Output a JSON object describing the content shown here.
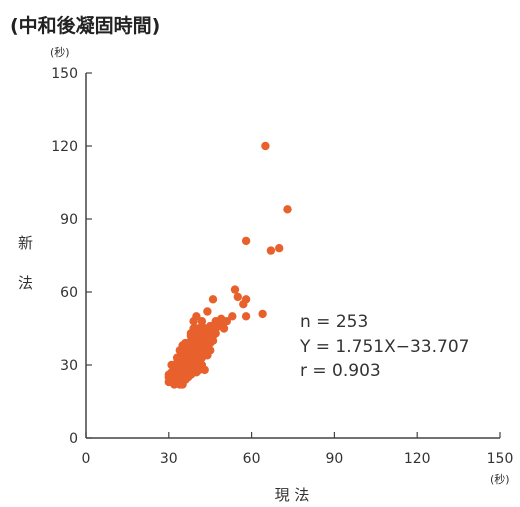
{
  "chart_data": {
    "type": "scatter",
    "title": "(中和後凝固時間)",
    "xlabel": "現 法",
    "ylabel_chars": [
      "新",
      "法"
    ],
    "x_unit": "(秒)",
    "y_unit": "(秒)",
    "xlim": [
      0,
      150
    ],
    "ylim": [
      0,
      150
    ],
    "x_ticks": [
      "0",
      "30",
      "60",
      "90",
      "120",
      "150"
    ],
    "y_ticks": [
      "0",
      "30",
      "60",
      "90",
      "120",
      "150"
    ],
    "marker_color": "#e8612c",
    "stats": {
      "n": "n = 253",
      "regression": "Y = 1.751X−33.707",
      "r": "r = 0.903"
    },
    "points": [
      [
        65,
        120
      ],
      [
        73,
        94
      ],
      [
        58,
        81
      ],
      [
        70,
        78
      ],
      [
        67,
        77
      ],
      [
        54,
        61
      ],
      [
        55,
        58
      ],
      [
        58,
        57
      ],
      [
        46,
        57
      ],
      [
        57,
        55
      ],
      [
        64,
        51
      ],
      [
        58,
        50
      ],
      [
        40,
        50
      ],
      [
        42,
        48
      ],
      [
        44,
        52
      ],
      [
        47,
        48
      ],
      [
        49,
        47
      ],
      [
        50,
        45
      ],
      [
        45,
        46
      ],
      [
        43,
        45
      ],
      [
        41,
        44
      ],
      [
        39,
        45
      ],
      [
        46,
        42
      ],
      [
        44,
        41
      ],
      [
        42,
        42
      ],
      [
        40,
        40
      ],
      [
        38,
        42
      ],
      [
        43,
        38
      ],
      [
        41,
        38
      ],
      [
        39,
        37
      ],
      [
        37,
        38
      ],
      [
        36,
        36
      ],
      [
        38,
        35
      ],
      [
        40,
        35
      ],
      [
        42,
        36
      ],
      [
        44,
        34
      ],
      [
        35,
        34
      ],
      [
        34,
        33
      ],
      [
        36,
        32
      ],
      [
        38,
        32
      ],
      [
        40,
        31
      ],
      [
        42,
        30
      ],
      [
        33,
        31
      ],
      [
        35,
        30
      ],
      [
        37,
        30
      ],
      [
        39,
        29
      ],
      [
        41,
        28
      ],
      [
        32,
        29
      ],
      [
        34,
        28
      ],
      [
        36,
        28
      ],
      [
        38,
        27
      ],
      [
        40,
        27
      ],
      [
        31,
        27
      ],
      [
        33,
        26
      ],
      [
        35,
        26
      ],
      [
        37,
        25
      ],
      [
        30,
        25
      ],
      [
        32,
        24
      ],
      [
        34,
        24
      ],
      [
        36,
        24
      ],
      [
        31,
        23
      ],
      [
        33,
        23
      ],
      [
        35,
        22
      ],
      [
        32,
        22
      ],
      [
        30,
        23
      ],
      [
        38,
        30
      ],
      [
        36,
        27
      ],
      [
        34,
        30
      ],
      [
        39,
        33
      ],
      [
        41,
        34
      ],
      [
        37,
        33
      ],
      [
        43,
        40
      ],
      [
        45,
        39
      ],
      [
        47,
        43
      ],
      [
        48,
        46
      ],
      [
        44,
        44
      ],
      [
        42,
        29
      ],
      [
        43,
        28
      ],
      [
        35,
        35
      ],
      [
        33,
        33
      ],
      [
        31,
        30
      ],
      [
        37,
        36
      ],
      [
        39,
        40
      ],
      [
        41,
        41
      ],
      [
        36,
        39
      ],
      [
        34,
        36
      ],
      [
        38,
        39
      ],
      [
        40,
        43
      ],
      [
        42,
        46
      ],
      [
        39,
        48
      ],
      [
        36,
        29
      ],
      [
        34,
        26
      ],
      [
        33,
        28
      ],
      [
        35,
        27
      ],
      [
        37,
        28
      ],
      [
        39,
        31
      ],
      [
        41,
        32
      ],
      [
        38,
        26
      ],
      [
        40,
        29
      ],
      [
        32,
        26
      ],
      [
        30,
        26
      ],
      [
        31,
        25
      ],
      [
        36,
        31
      ],
      [
        34,
        32
      ],
      [
        38,
        37
      ],
      [
        35,
        38
      ],
      [
        40,
        38
      ],
      [
        42,
        33
      ],
      [
        44,
        37
      ],
      [
        46,
        40
      ],
      [
        37,
        34
      ],
      [
        33,
        30
      ],
      [
        35,
        33
      ],
      [
        39,
        35
      ],
      [
        41,
        36
      ],
      [
        43,
        42
      ],
      [
        45,
        44
      ],
      [
        47,
        45
      ],
      [
        49,
        49
      ],
      [
        51,
        48
      ],
      [
        53,
        50
      ],
      [
        37,
        31
      ],
      [
        36,
        25
      ],
      [
        34,
        22
      ],
      [
        31,
        24
      ],
      [
        39,
        27
      ],
      [
        40,
        33
      ],
      [
        42,
        39
      ],
      [
        44,
        43
      ],
      [
        38,
        43
      ],
      [
        36,
        34
      ],
      [
        32,
        27
      ],
      [
        34,
        29
      ],
      [
        35,
        24
      ],
      [
        37,
        27
      ],
      [
        39,
        30
      ],
      [
        41,
        30
      ],
      [
        43,
        35
      ],
      [
        45,
        36
      ],
      [
        40,
        45
      ],
      [
        38,
        40
      ],
      [
        36,
        37
      ],
      [
        33,
        27
      ],
      [
        35,
        31
      ],
      [
        37,
        32
      ],
      [
        39,
        34
      ],
      [
        41,
        40
      ],
      [
        43,
        43
      ]
    ]
  }
}
